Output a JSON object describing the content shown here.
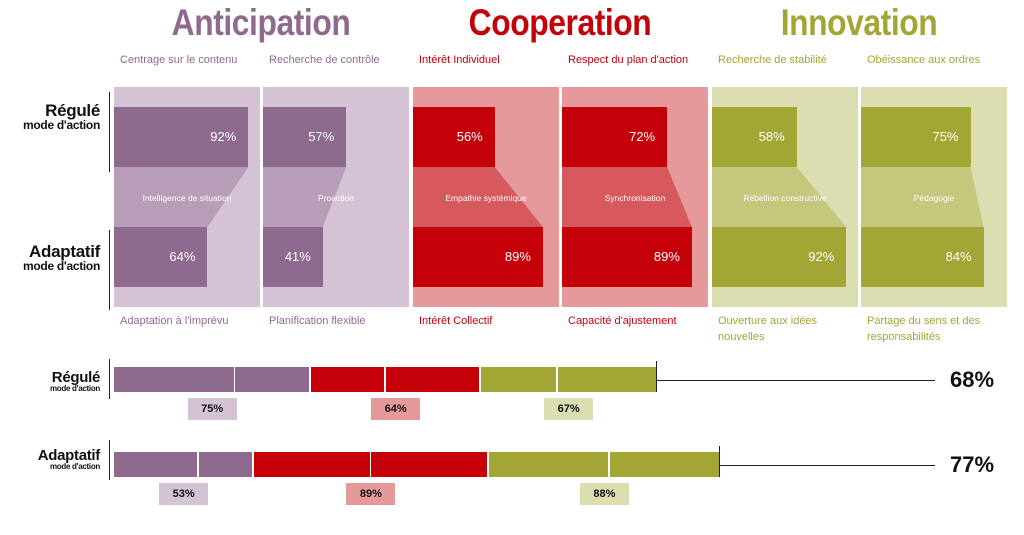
{
  "colors": {
    "anticipation": "#8e6b8e",
    "anticipation_light": "#d4c3d4",
    "anticipation_mid": "#b89db8",
    "cooperation": "#c40009",
    "cooperation_light": "#e6999b",
    "cooperation_mid": "#d65a5d",
    "innovation": "#a2a635",
    "innovation_light": "#dadeb0",
    "innovation_mid": "#c4c77c"
  },
  "row_labels": {
    "regule": {
      "main": "Régulé",
      "sub": "mode d'action"
    },
    "adaptatif": {
      "main": "Adaptatif",
      "sub": "mode d'action"
    }
  },
  "chart_data": [
    {
      "type": "bar",
      "groups": [
        {
          "name": "Anticipation",
          "color_key": "anticipation",
          "dimensions": [
            {
              "top_label": "Centrage sur le contenu",
              "mid_label": "Intelligence de situation",
              "bottom_label": "Adaptation à l'imprévu",
              "regule": 92,
              "adaptatif": 64,
              "regule_label": "92%",
              "adaptatif_label": "64%"
            },
            {
              "top_label": "Recherche de contrôle",
              "mid_label": "Proaction",
              "bottom_label": "Planification flexible",
              "regule": 57,
              "adaptatif": 41,
              "regule_label": "57%",
              "adaptatif_label": "41%"
            }
          ]
        },
        {
          "name": "Cooperation",
          "color_key": "cooperation",
          "dimensions": [
            {
              "top_label": "Intérêt Individuel",
              "mid_label": "Empathie systémique",
              "bottom_label": "Intérêt Collectif",
              "regule": 56,
              "adaptatif": 89,
              "regule_label": "56%",
              "adaptatif_label": "89%"
            },
            {
              "top_label": "Respect du plan d'action",
              "mid_label": "Synchronisation",
              "bottom_label": "Capacité d'ajustement",
              "regule": 72,
              "adaptatif": 89,
              "regule_label": "72%",
              "adaptatif_label": "89%"
            }
          ]
        },
        {
          "name": "Innovation",
          "color_key": "innovation",
          "dimensions": [
            {
              "top_label": "Recherche de stabilité",
              "mid_label": "Rébellion constructive",
              "bottom_label": "Ouverture aux idées nouvelles",
              "regule": 58,
              "adaptatif": 92,
              "regule_label": "58%",
              "adaptatif_label": "92%"
            },
            {
              "top_label": "Obéissance aux ordres",
              "mid_label": "Pédagogie",
              "bottom_label": "Partage du sens et des responsabilités",
              "regule": 75,
              "adaptatif": 84,
              "regule_label": "75%",
              "adaptatif_label": "84%"
            }
          ]
        }
      ]
    },
    {
      "type": "bar",
      "orientation": "horizontal-stacked",
      "rows": [
        {
          "key": "regule",
          "segments": [
            92,
            57,
            56,
            72,
            58,
            75
          ],
          "group_averages": [
            {
              "group": "Anticipation",
              "label": "75%"
            },
            {
              "group": "Cooperation",
              "label": "64%"
            },
            {
              "group": "Innovation",
              "label": "67%"
            }
          ],
          "total": "68%"
        },
        {
          "key": "adaptatif",
          "segments": [
            64,
            41,
            89,
            89,
            92,
            84
          ],
          "group_averages": [
            {
              "group": "Anticipation",
              "label": "53%"
            },
            {
              "group": "Cooperation",
              "label": "89%"
            },
            {
              "group": "Innovation",
              "label": "88%"
            }
          ],
          "total": "77%"
        }
      ]
    }
  ]
}
